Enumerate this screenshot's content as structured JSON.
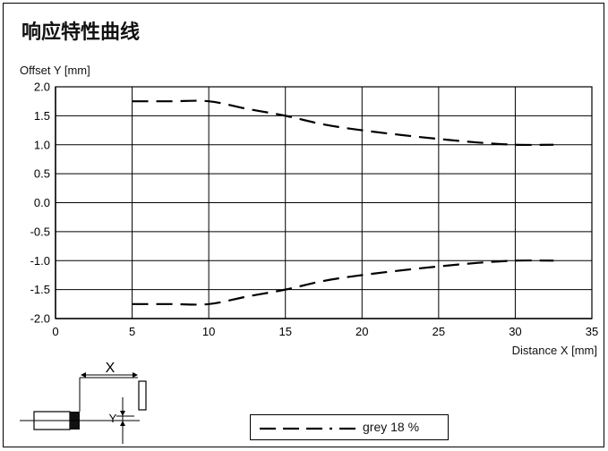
{
  "chart_data": {
    "type": "line",
    "title": "响应特性曲线",
    "xlabel": "Distance X [mm]",
    "ylabel": "Offset Y [mm]",
    "xlim": [
      0,
      35
    ],
    "ylim": [
      -2.0,
      2.0
    ],
    "x_ticks": [
      "0",
      "5",
      "10",
      "15",
      "20",
      "25",
      "30",
      "35"
    ],
    "y_ticks": [
      "2.0",
      "1.5",
      "1.0",
      "0.5",
      "0.0",
      "-0.5",
      "-1.0",
      "-1.5",
      "-2.0"
    ],
    "grid": true,
    "series": [
      {
        "name": "grey 18 %",
        "style": "dashed",
        "color": "#000000",
        "x": [
          5,
          7.5,
          10,
          12.5,
          15,
          17.5,
          20,
          22.5,
          25,
          27.5,
          30,
          32.5
        ],
        "y": [
          1.75,
          1.75,
          1.75,
          1.62,
          1.5,
          1.35,
          1.25,
          1.17,
          1.1,
          1.04,
          1.0,
          1.0
        ]
      },
      {
        "name": "grey 18 %",
        "style": "dashed",
        "color": "#000000",
        "x": [
          5,
          7.5,
          10,
          12.5,
          15,
          17.5,
          20,
          22.5,
          25,
          27.5,
          30,
          32.5
        ],
        "y": [
          -1.75,
          -1.75,
          -1.75,
          -1.62,
          -1.5,
          -1.35,
          -1.25,
          -1.17,
          -1.1,
          -1.04,
          -1.0,
          -1.0
        ]
      }
    ],
    "legend": {
      "label": "grey 18 %",
      "placement": "bottom-center"
    },
    "diagram_labels": {
      "x": "X",
      "y": "Y"
    }
  }
}
